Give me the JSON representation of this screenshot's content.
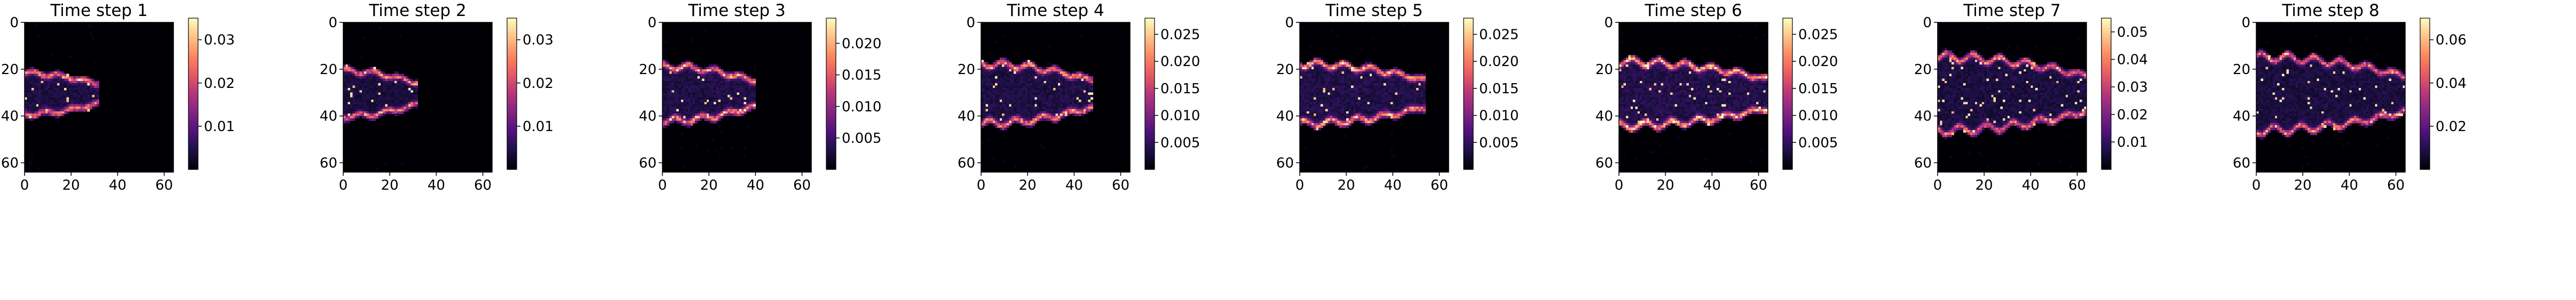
{
  "figure": {
    "colormap": "magma",
    "colormap_stops": [
      "#000004",
      "#1c1044",
      "#4f127b",
      "#812581",
      "#b5367a",
      "#e55964",
      "#fb8761",
      "#fec287",
      "#fcfdbf"
    ],
    "background_color": "#000004"
  },
  "chart_data": [
    {
      "type": "heatmap",
      "title": "Time step 1",
      "xlabel": "",
      "ylabel": "",
      "grid_size": [
        64,
        64
      ],
      "xlim": [
        0,
        64
      ],
      "ylim": [
        64,
        0
      ],
      "xticks": [
        "0",
        "20",
        "40",
        "60"
      ],
      "yticks": [
        "0",
        "20",
        "40",
        "60"
      ],
      "colorbar": {
        "min": 0.0,
        "max": 0.035,
        "ticks": [
          0.01,
          0.02,
          0.03
        ],
        "tick_labels": [
          "0.01",
          "0.02",
          "0.03"
        ]
      },
      "plume": {
        "x_start": 0,
        "x_end": 30,
        "y_center": 30,
        "half_width": 8,
        "ridge_value": 0.026
      }
    },
    {
      "type": "heatmap",
      "title": "Time step 2",
      "xlabel": "",
      "ylabel": "",
      "grid_size": [
        64,
        64
      ],
      "xlim": [
        0,
        64
      ],
      "ylim": [
        64,
        0
      ],
      "xticks": [
        "0",
        "20",
        "40",
        "60"
      ],
      "yticks": [
        "0",
        "20",
        "40",
        "60"
      ],
      "colorbar": {
        "min": 0.0,
        "max": 0.035,
        "ticks": [
          0.01,
          0.02,
          0.03
        ],
        "tick_labels": [
          "0.01",
          "0.02",
          "0.03"
        ]
      },
      "plume": {
        "x_start": 0,
        "x_end": 30,
        "y_center": 30,
        "half_width": 9,
        "ridge_value": 0.024
      }
    },
    {
      "type": "heatmap",
      "title": "Time step 3",
      "xlabel": "",
      "ylabel": "",
      "grid_size": [
        64,
        64
      ],
      "xlim": [
        0,
        64
      ],
      "ylim": [
        64,
        0
      ],
      "xticks": [
        "0",
        "20",
        "40",
        "60"
      ],
      "yticks": [
        "0",
        "20",
        "40",
        "60"
      ],
      "colorbar": {
        "min": 0.0,
        "max": 0.024,
        "ticks": [
          0.005,
          0.01,
          0.015,
          0.02
        ],
        "tick_labels": [
          "0.005",
          "0.010",
          "0.015",
          "0.020"
        ]
      },
      "plume": {
        "x_start": 0,
        "x_end": 38,
        "y_center": 30,
        "half_width": 11,
        "ridge_value": 0.019
      }
    },
    {
      "type": "heatmap",
      "title": "Time step 4",
      "xlabel": "",
      "ylabel": "",
      "grid_size": [
        64,
        64
      ],
      "xlim": [
        0,
        64
      ],
      "ylim": [
        64,
        0
      ],
      "xticks": [
        "0",
        "20",
        "40",
        "60"
      ],
      "yticks": [
        "0",
        "20",
        "40",
        "60"
      ],
      "colorbar": {
        "min": 0.0,
        "max": 0.028,
        "ticks": [
          0.005,
          0.01,
          0.015,
          0.02,
          0.025
        ],
        "tick_labels": [
          "0.005",
          "0.010",
          "0.015",
          "0.020",
          "0.025"
        ]
      },
      "plume": {
        "x_start": 0,
        "x_end": 46,
        "y_center": 30,
        "half_width": 12,
        "ridge_value": 0.022
      }
    },
    {
      "type": "heatmap",
      "title": "Time step 5",
      "xlabel": "",
      "ylabel": "",
      "grid_size": [
        64,
        64
      ],
      "xlim": [
        0,
        64
      ],
      "ylim": [
        64,
        0
      ],
      "xticks": [
        "0",
        "20",
        "40",
        "60"
      ],
      "yticks": [
        "0",
        "20",
        "40",
        "60"
      ],
      "colorbar": {
        "min": 0.0,
        "max": 0.028,
        "ticks": [
          0.005,
          0.01,
          0.015,
          0.02,
          0.025
        ],
        "tick_labels": [
          "0.005",
          "0.010",
          "0.015",
          "0.020",
          "0.025"
        ]
      },
      "plume": {
        "x_start": 0,
        "x_end": 52,
        "y_center": 30,
        "half_width": 12,
        "ridge_value": 0.023
      }
    },
    {
      "type": "heatmap",
      "title": "Time step 6",
      "xlabel": "",
      "ylabel": "",
      "grid_size": [
        64,
        64
      ],
      "xlim": [
        0,
        64
      ],
      "ylim": [
        64,
        0
      ],
      "xticks": [
        "0",
        "20",
        "40",
        "60"
      ],
      "yticks": [
        "0",
        "20",
        "40",
        "60"
      ],
      "colorbar": {
        "min": 0.0,
        "max": 0.028,
        "ticks": [
          0.005,
          0.01,
          0.015,
          0.02,
          0.025
        ],
        "tick_labels": [
          "0.005",
          "0.010",
          "0.015",
          "0.020",
          "0.025"
        ]
      },
      "plume": {
        "x_start": 0,
        "x_end": 62,
        "y_center": 30,
        "half_width": 13,
        "ridge_value": 0.024
      }
    },
    {
      "type": "heatmap",
      "title": "Time step 7",
      "xlabel": "",
      "ylabel": "",
      "grid_size": [
        64,
        64
      ],
      "xlim": [
        0,
        64
      ],
      "ylim": [
        64,
        0
      ],
      "xticks": [
        "0",
        "20",
        "40",
        "60"
      ],
      "yticks": [
        "0",
        "20",
        "40",
        "60"
      ],
      "colorbar": {
        "min": 0.0,
        "max": 0.055,
        "ticks": [
          0.01,
          0.02,
          0.03,
          0.04,
          0.05
        ],
        "tick_labels": [
          "0.01",
          "0.02",
          "0.03",
          "0.04",
          "0.05"
        ]
      },
      "plume": {
        "x_start": 0,
        "x_end": 64,
        "y_center": 30,
        "half_width": 15,
        "ridge_value": 0.04
      }
    },
    {
      "type": "heatmap",
      "title": "Time step 8",
      "xlabel": "",
      "ylabel": "",
      "grid_size": [
        64,
        64
      ],
      "xlim": [
        0,
        64
      ],
      "ylim": [
        64,
        0
      ],
      "xticks": [
        "0",
        "20",
        "40",
        "60"
      ],
      "yticks": [
        "0",
        "20",
        "40",
        "60"
      ],
      "colorbar": {
        "min": 0.0,
        "max": 0.07,
        "ticks": [
          0.02,
          0.04,
          0.06
        ],
        "tick_labels": [
          "0.02",
          "0.04",
          "0.06"
        ]
      },
      "plume": {
        "x_start": 0,
        "x_end": 64,
        "y_center": 30,
        "half_width": 15,
        "ridge_value": 0.05
      }
    }
  ]
}
